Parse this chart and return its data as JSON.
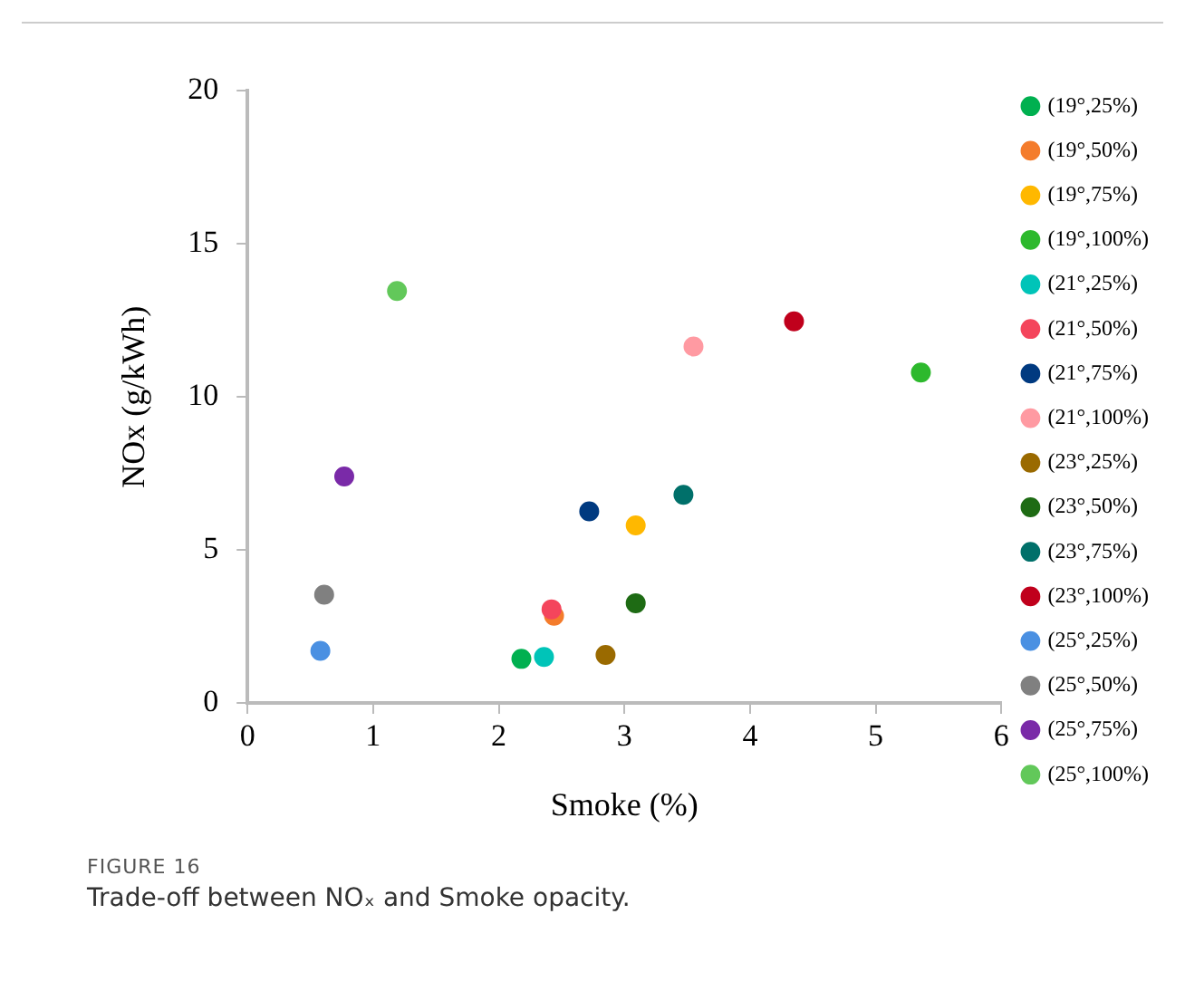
{
  "chart_data": {
    "type": "scatter",
    "xlabel": "Smoke (%)",
    "ylabel": "NOx (g/kWh)",
    "xlim": [
      0,
      6
    ],
    "xticks": [
      0,
      1,
      2,
      3,
      4,
      5,
      6
    ],
    "ylim": [
      0,
      20
    ],
    "yticks": [
      0,
      5,
      10,
      15,
      20
    ],
    "legend": "right",
    "marker": "circle",
    "series": [
      {
        "name": "(19°,25%)",
        "color": "#00b050",
        "x": [
          2.18
        ],
        "values": [
          1.44
        ]
      },
      {
        "name": "(19°,50%)",
        "color": "#f47c2c",
        "x": [
          2.44
        ],
        "values": [
          2.85
        ]
      },
      {
        "name": "(19°,75%)",
        "color": "#ffb800",
        "x": [
          3.09
        ],
        "values": [
          5.8
        ]
      },
      {
        "name": "(19°,100%)",
        "color": "#2db92d",
        "x": [
          5.36
        ],
        "values": [
          10.8
        ]
      },
      {
        "name": "(21°,25%)",
        "color": "#00c4b8",
        "x": [
          2.36
        ],
        "values": [
          1.5
        ]
      },
      {
        "name": "(21°,50%)",
        "color": "#f4455c",
        "x": [
          2.42
        ],
        "values": [
          3.06
        ]
      },
      {
        "name": "(21°,75%)",
        "color": "#003a80",
        "x": [
          2.72
        ],
        "values": [
          6.26
        ]
      },
      {
        "name": "(21°,100%)",
        "color": "#ff9aa2",
        "x": [
          3.55
        ],
        "values": [
          11.65
        ]
      },
      {
        "name": "(23°,25%)",
        "color": "#9a6a00",
        "x": [
          2.85
        ],
        "values": [
          1.57
        ]
      },
      {
        "name": "(23°,50%)",
        "color": "#1e6b14",
        "x": [
          3.09
        ],
        "values": [
          3.26
        ]
      },
      {
        "name": "(23°,75%)",
        "color": "#00706a",
        "x": [
          3.47
        ],
        "values": [
          6.8
        ]
      },
      {
        "name": "(23°,100%)",
        "color": "#c0001c",
        "x": [
          4.35
        ],
        "values": [
          12.47
        ]
      },
      {
        "name": "(25°,25%)",
        "color": "#4a90e2",
        "x": [
          0.58
        ],
        "values": [
          1.7
        ]
      },
      {
        "name": "(25°,50%)",
        "color": "#808080",
        "x": [
          0.61
        ],
        "values": [
          3.54
        ]
      },
      {
        "name": "(25°,75%)",
        "color": "#7a2aa8",
        "x": [
          0.77
        ],
        "values": [
          7.4
        ]
      },
      {
        "name": "(25°,100%)",
        "color": "#62c85a",
        "x": [
          1.19
        ],
        "values": [
          13.46
        ]
      }
    ],
    "annotations": [
      "FIGURE 16",
      "Trade-off between NOₓ and Smoke opacity."
    ]
  }
}
